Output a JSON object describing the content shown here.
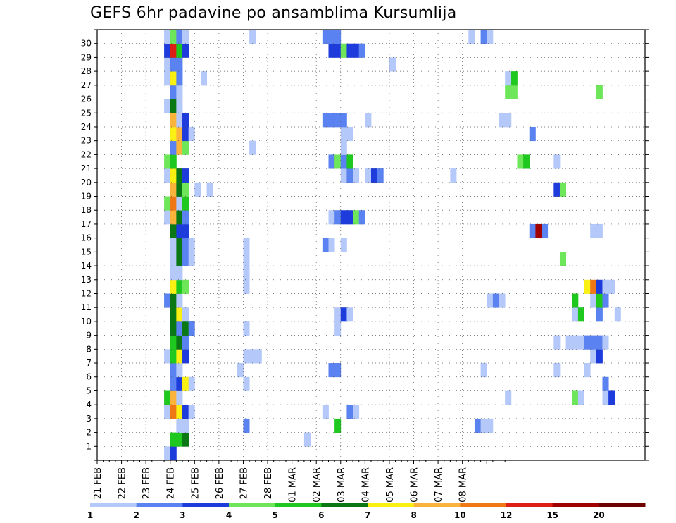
{
  "chart_data": {
    "type": "heatmap",
    "title": "GEFS 6hr padavine po ansamblima Kursumlija",
    "x_tick_labels": [
      "21 FEB",
      "22 FEB",
      "23 FEB",
      "24 FEB",
      "25 FEB",
      "26 FEB",
      "27 FEB",
      "28 FEB",
      "01 MAR",
      "02 MAR",
      "03 MAR",
      "04 MAR",
      "05 MAR",
      "06 MAR",
      "07 MAR",
      "08 MAR"
    ],
    "y_tick_labels": [
      "1",
      "2",
      "3",
      "4",
      "5",
      "6",
      "7",
      "8",
      "9",
      "10",
      "11",
      "12",
      "13",
      "14",
      "15",
      "16",
      "17",
      "18",
      "19",
      "20",
      "21",
      "22",
      "23",
      "24",
      "25",
      "26",
      "27",
      "28",
      "29",
      "30"
    ],
    "x_start_date": "21 FEB 00Z",
    "time_step_hours": 6,
    "ensemble_members": 30,
    "grid": true,
    "levels": [
      1,
      2,
      3,
      4,
      5,
      6,
      7,
      8,
      10,
      12,
      15,
      20
    ],
    "colors": [
      "#b4c8fa",
      "#5a82f0",
      "#1e3cdc",
      "#6ee65a",
      "#1ec81e",
      "#0a7814",
      "#faf014",
      "#fab43c",
      "#f07814",
      "#dc1e14",
      "#a00000",
      "#6e0000"
    ],
    "cells": [
      [
        0,
        11,
        1
      ],
      [
        0,
        12,
        3
      ],
      [
        1,
        12,
        5
      ],
      [
        1,
        13,
        5
      ],
      [
        1,
        14,
        6
      ],
      [
        1,
        34,
        1
      ],
      [
        2,
        13,
        1
      ],
      [
        2,
        14,
        1
      ],
      [
        2,
        24,
        2
      ],
      [
        2,
        39,
        5
      ],
      [
        2,
        62,
        2
      ],
      [
        2,
        63,
        1
      ],
      [
        2,
        64,
        1
      ],
      [
        3,
        11,
        1
      ],
      [
        3,
        12,
        9
      ],
      [
        3,
        13,
        7
      ],
      [
        3,
        14,
        3
      ],
      [
        3,
        15,
        1
      ],
      [
        3,
        37,
        1
      ],
      [
        3,
        41,
        2
      ],
      [
        3,
        42,
        1
      ],
      [
        4,
        11,
        5
      ],
      [
        4,
        12,
        8
      ],
      [
        4,
        13,
        1
      ],
      [
        4,
        67,
        1
      ],
      [
        4,
        78,
        4
      ],
      [
        4,
        79,
        1
      ],
      [
        4,
        83,
        1
      ],
      [
        4,
        84,
        3
      ],
      [
        5,
        12,
        2
      ],
      [
        5,
        13,
        3
      ],
      [
        5,
        14,
        7
      ],
      [
        5,
        15,
        1
      ],
      [
        5,
        24,
        1
      ],
      [
        5,
        83,
        2
      ],
      [
        6,
        12,
        2
      ],
      [
        6,
        13,
        1
      ],
      [
        6,
        23,
        1
      ],
      [
        6,
        38,
        2
      ],
      [
        6,
        39,
        2
      ],
      [
        6,
        63,
        1
      ],
      [
        6,
        75,
        1
      ],
      [
        6,
        80,
        1
      ],
      [
        7,
        11,
        1
      ],
      [
        7,
        12,
        5
      ],
      [
        7,
        13,
        7
      ],
      [
        7,
        14,
        3
      ],
      [
        7,
        24,
        1
      ],
      [
        7,
        25,
        1
      ],
      [
        7,
        26,
        1
      ],
      [
        7,
        81,
        1
      ],
      [
        7,
        82,
        3
      ],
      [
        8,
        12,
        5
      ],
      [
        8,
        13,
        6
      ],
      [
        8,
        14,
        2
      ],
      [
        8,
        75,
        1
      ],
      [
        8,
        77,
        1
      ],
      [
        8,
        78,
        1
      ],
      [
        8,
        79,
        1
      ],
      [
        8,
        80,
        2
      ],
      [
        8,
        81,
        2
      ],
      [
        8,
        82,
        2
      ],
      [
        8,
        83,
        1
      ],
      [
        9,
        12,
        6
      ],
      [
        9,
        13,
        2
      ],
      [
        9,
        14,
        6
      ],
      [
        9,
        15,
        2
      ],
      [
        9,
        24,
        1
      ],
      [
        9,
        39,
        1
      ],
      [
        10,
        12,
        6
      ],
      [
        10,
        13,
        7
      ],
      [
        10,
        14,
        1
      ],
      [
        10,
        39,
        1
      ],
      [
        10,
        40,
        3
      ],
      [
        10,
        41,
        1
      ],
      [
        10,
        78,
        1
      ],
      [
        10,
        79,
        5
      ],
      [
        10,
        82,
        2
      ],
      [
        10,
        85,
        1
      ],
      [
        11,
        11,
        2
      ],
      [
        11,
        12,
        6
      ],
      [
        11,
        13,
        1
      ],
      [
        11,
        64,
        1
      ],
      [
        11,
        65,
        2
      ],
      [
        11,
        66,
        1
      ],
      [
        11,
        78,
        5
      ],
      [
        11,
        81,
        1
      ],
      [
        11,
        82,
        5
      ],
      [
        11,
        83,
        2
      ],
      [
        12,
        12,
        7
      ],
      [
        12,
        13,
        5
      ],
      [
        12,
        14,
        4
      ],
      [
        12,
        24,
        1
      ],
      [
        12,
        80,
        7
      ],
      [
        12,
        81,
        9
      ],
      [
        12,
        82,
        3
      ],
      [
        12,
        83,
        1
      ],
      [
        12,
        84,
        1
      ],
      [
        13,
        12,
        1
      ],
      [
        13,
        13,
        1
      ],
      [
        13,
        24,
        1
      ],
      [
        14,
        12,
        1
      ],
      [
        14,
        13,
        6
      ],
      [
        14,
        14,
        2
      ],
      [
        14,
        15,
        1
      ],
      [
        14,
        24,
        1
      ],
      [
        14,
        76,
        4
      ],
      [
        15,
        12,
        1
      ],
      [
        15,
        13,
        6
      ],
      [
        15,
        14,
        2
      ],
      [
        15,
        15,
        1
      ],
      [
        15,
        24,
        1
      ],
      [
        15,
        37,
        2
      ],
      [
        15,
        38,
        1
      ],
      [
        15,
        40,
        1
      ],
      [
        16,
        12,
        6
      ],
      [
        16,
        13,
        3
      ],
      [
        16,
        14,
        3
      ],
      [
        16,
        71,
        2
      ],
      [
        16,
        72,
        11
      ],
      [
        16,
        73,
        2
      ],
      [
        16,
        81,
        1
      ],
      [
        16,
        82,
        1
      ],
      [
        17,
        11,
        1
      ],
      [
        17,
        12,
        8
      ],
      [
        17,
        13,
        6
      ],
      [
        17,
        14,
        2
      ],
      [
        17,
        38,
        1
      ],
      [
        17,
        39,
        2
      ],
      [
        17,
        40,
        3
      ],
      [
        17,
        41,
        3
      ],
      [
        17,
        42,
        4
      ],
      [
        17,
        43,
        2
      ],
      [
        18,
        11,
        4
      ],
      [
        18,
        12,
        9
      ],
      [
        18,
        13,
        1
      ],
      [
        18,
        14,
        5
      ],
      [
        19,
        12,
        8
      ],
      [
        19,
        13,
        6
      ],
      [
        19,
        14,
        4
      ],
      [
        19,
        16,
        1
      ],
      [
        19,
        18,
        1
      ],
      [
        19,
        75,
        3
      ],
      [
        19,
        76,
        4
      ],
      [
        20,
        11,
        1
      ],
      [
        20,
        12,
        7
      ],
      [
        20,
        13,
        6
      ],
      [
        20,
        14,
        3
      ],
      [
        20,
        40,
        1
      ],
      [
        20,
        41,
        2
      ],
      [
        20,
        42,
        1
      ],
      [
        20,
        44,
        1
      ],
      [
        20,
        45,
        3
      ],
      [
        20,
        46,
        2
      ],
      [
        20,
        58,
        1
      ],
      [
        21,
        11,
        4
      ],
      [
        21,
        12,
        5
      ],
      [
        21,
        38,
        2
      ],
      [
        21,
        39,
        4
      ],
      [
        21,
        40,
        2
      ],
      [
        21,
        41,
        5
      ],
      [
        21,
        69,
        4
      ],
      [
        21,
        70,
        5
      ],
      [
        21,
        75,
        1
      ],
      [
        22,
        12,
        2
      ],
      [
        22,
        13,
        8
      ],
      [
        22,
        14,
        4
      ],
      [
        22,
        25,
        1
      ],
      [
        22,
        40,
        1
      ],
      [
        23,
        12,
        7
      ],
      [
        23,
        13,
        8
      ],
      [
        23,
        14,
        3
      ],
      [
        23,
        15,
        1
      ],
      [
        23,
        40,
        1
      ],
      [
        23,
        41,
        1
      ],
      [
        23,
        71,
        2
      ],
      [
        24,
        12,
        8
      ],
      [
        24,
        13,
        1
      ],
      [
        24,
        14,
        3
      ],
      [
        24,
        37,
        2
      ],
      [
        24,
        38,
        2
      ],
      [
        24,
        39,
        2
      ],
      [
        24,
        40,
        2
      ],
      [
        24,
        44,
        1
      ],
      [
        24,
        66,
        1
      ],
      [
        24,
        67,
        1
      ],
      [
        25,
        11,
        1
      ],
      [
        25,
        12,
        6
      ],
      [
        25,
        13,
        1
      ],
      [
        26,
        12,
        2
      ],
      [
        26,
        13,
        1
      ],
      [
        26,
        67,
        4
      ],
      [
        26,
        68,
        4
      ],
      [
        26,
        82,
        4
      ],
      [
        27,
        11,
        1
      ],
      [
        27,
        12,
        7
      ],
      [
        27,
        13,
        2
      ],
      [
        27,
        17,
        1
      ],
      [
        27,
        67,
        1
      ],
      [
        27,
        68,
        5
      ],
      [
        28,
        11,
        1
      ],
      [
        28,
        12,
        2
      ],
      [
        28,
        13,
        2
      ],
      [
        28,
        48,
        1
      ],
      [
        29,
        11,
        3
      ],
      [
        29,
        12,
        10
      ],
      [
        29,
        13,
        5
      ],
      [
        29,
        14,
        3
      ],
      [
        29,
        38,
        3
      ],
      [
        29,
        39,
        3
      ],
      [
        29,
        40,
        4
      ],
      [
        29,
        41,
        3
      ],
      [
        29,
        42,
        3
      ],
      [
        29,
        43,
        2
      ],
      [
        30,
        11,
        1
      ],
      [
        30,
        12,
        4
      ],
      [
        30,
        13,
        2
      ],
      [
        30,
        14,
        1
      ],
      [
        30,
        25,
        1
      ],
      [
        30,
        37,
        2
      ],
      [
        30,
        38,
        2
      ],
      [
        30,
        39,
        2
      ],
      [
        30,
        61,
        1
      ],
      [
        30,
        63,
        2
      ],
      [
        30,
        64,
        1
      ]
    ]
  }
}
